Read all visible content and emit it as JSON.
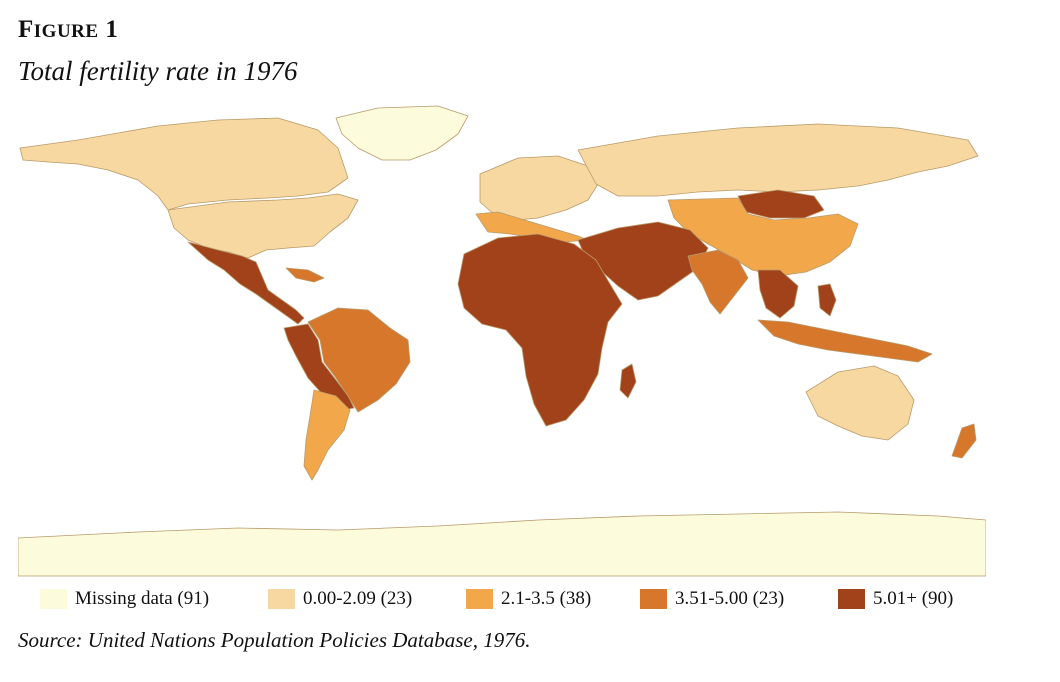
{
  "figure": {
    "label_first": "F",
    "label_rest": "IGURE",
    "label_num": "1",
    "title": "Total fertility rate in 1976"
  },
  "legend": [
    {
      "label": "Missing data (91)",
      "color": "#fcfbdc"
    },
    {
      "label": "0.00-2.09 (23)",
      "color": "#f6d8a0"
    },
    {
      "label": "2.1-3.5 (38)",
      "color": "#f2a84a"
    },
    {
      "label": "3.51-5.00 (23)",
      "color": "#d6772c"
    },
    {
      "label": "5.01+ (90)",
      "color": "#a1421a"
    }
  ],
  "source": "Source: United Nations Population Policies Database, 1976."
}
